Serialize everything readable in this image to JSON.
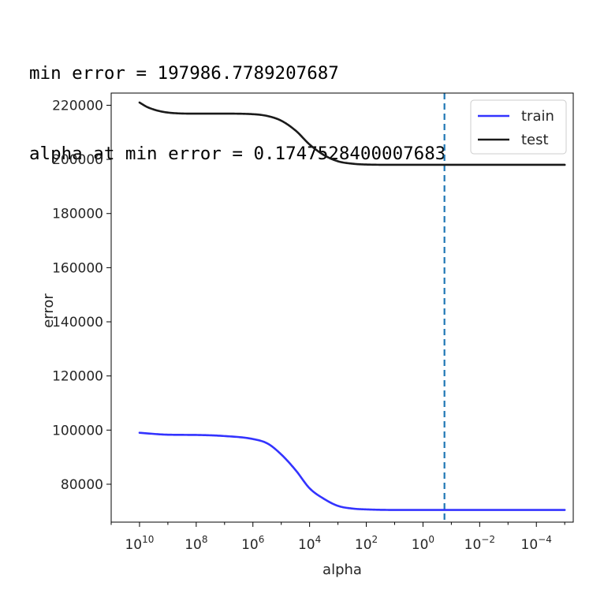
{
  "output": {
    "line1": "min error = 197986.7789207687",
    "line2": "alpha at min error = 0.1747528400007683"
  },
  "chart_data": {
    "type": "line",
    "xscale": "log",
    "x_inverted": true,
    "xlim": [
      100000000000.0,
      5e-06
    ],
    "ylim": [
      66000,
      224500
    ],
    "xlabel": "alpha",
    "ylabel": "error",
    "xticks": [
      {
        "mant": "10",
        "exp": "10",
        "value": 10000000000.0
      },
      {
        "mant": "10",
        "exp": "8",
        "value": 100000000.0
      },
      {
        "mant": "10",
        "exp": "6",
        "value": 1000000.0
      },
      {
        "mant": "10",
        "exp": "4",
        "value": 10000.0
      },
      {
        "mant": "10",
        "exp": "2",
        "value": 100.0
      },
      {
        "mant": "10",
        "exp": "0",
        "value": 1
      },
      {
        "mant": "10",
        "exp": "−2",
        "value": 0.01
      },
      {
        "mant": "10",
        "exp": "−4",
        "value": 0.0001
      }
    ],
    "yticks": [
      {
        "label": "80000",
        "value": 80000
      },
      {
        "label": "100000",
        "value": 100000
      },
      {
        "label": "120000",
        "value": 120000
      },
      {
        "label": "140000",
        "value": 140000
      },
      {
        "label": "160000",
        "value": 160000
      },
      {
        "label": "180000",
        "value": 180000
      },
      {
        "label": "200000",
        "value": 200000
      },
      {
        "label": "220000",
        "value": 220000
      }
    ],
    "vline": {
      "x": 0.1747528400007683,
      "color": "#1f77b4",
      "style": "dashed"
    },
    "legend": {
      "placement": "top-right"
    },
    "series": [
      {
        "name": "train",
        "color": "#3333ff",
        "x": [
          10000000000.0,
          1000000000.0,
          100000000.0,
          10000000.0,
          1000000.0,
          300000.0,
          100000.0,
          30000.0,
          10000.0,
          3000.0,
          1000.0,
          300.0,
          100.0,
          10.0,
          1,
          0.1,
          0.01,
          0.001,
          0.0001,
          1e-05
        ],
        "y": [
          99000,
          98300,
          98200,
          97800,
          96700,
          95000,
          91000,
          85000,
          78500,
          74500,
          72000,
          71000,
          70700,
          70500,
          70500,
          70500,
          70500,
          70500,
          70500,
          70500
        ]
      },
      {
        "name": "test",
        "color": "#1a1a1a",
        "x": [
          10000000000.0,
          5000000000.0,
          1000000000.0,
          100000000.0,
          10000000.0,
          1000000.0,
          300000.0,
          100000.0,
          30000.0,
          10000.0,
          3000.0,
          1000.0,
          300.0,
          100.0,
          10.0,
          1,
          0.1,
          0.01,
          0.001,
          0.0001,
          1e-05
        ],
        "y": [
          221000,
          219200,
          217300,
          216900,
          216900,
          216700,
          216000,
          214300,
          210500,
          205500,
          201500,
          199300,
          198400,
          198100,
          198000,
          198000,
          198000,
          198000,
          198000,
          198000,
          198000
        ]
      }
    ]
  }
}
